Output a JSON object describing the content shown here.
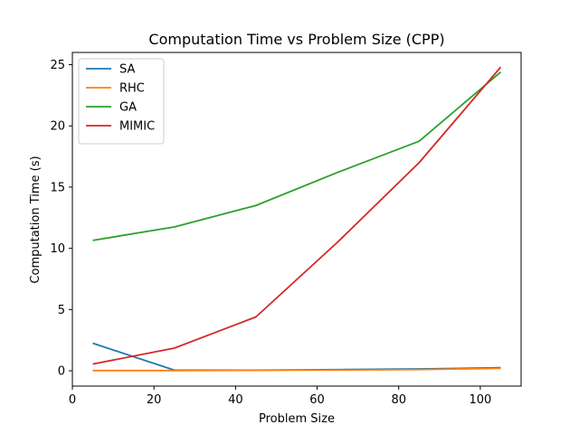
{
  "chart_data": {
    "type": "line",
    "title": "Computation Time vs Problem Size (CPP)",
    "xlabel": "Problem Size",
    "ylabel": "Computation Time (s)",
    "xlim": [
      0,
      110
    ],
    "ylim": [
      -1.25,
      26.0
    ],
    "xticks": [
      0,
      20,
      40,
      60,
      80,
      100
    ],
    "yticks": [
      0,
      5,
      10,
      15,
      20,
      25
    ],
    "grid": false,
    "legend_position": "top-left",
    "x": [
      5,
      25,
      45,
      65,
      85,
      105
    ],
    "series": [
      {
        "name": "SA",
        "color": "#1f77b4",
        "values": [
          2.25,
          0.05,
          0.05,
          0.1,
          0.15,
          0.25
        ]
      },
      {
        "name": "RHC",
        "color": "#ff7f0e",
        "values": [
          0.02,
          0.02,
          0.04,
          0.06,
          0.1,
          0.2
        ]
      },
      {
        "name": "GA",
        "color": "#2ca02c",
        "values": [
          10.65,
          11.75,
          13.5,
          16.2,
          18.75,
          24.4
        ]
      },
      {
        "name": "MIMIC",
        "color": "#d62728",
        "values": [
          0.55,
          1.85,
          4.4,
          10.5,
          17.0,
          24.8
        ]
      }
    ]
  }
}
